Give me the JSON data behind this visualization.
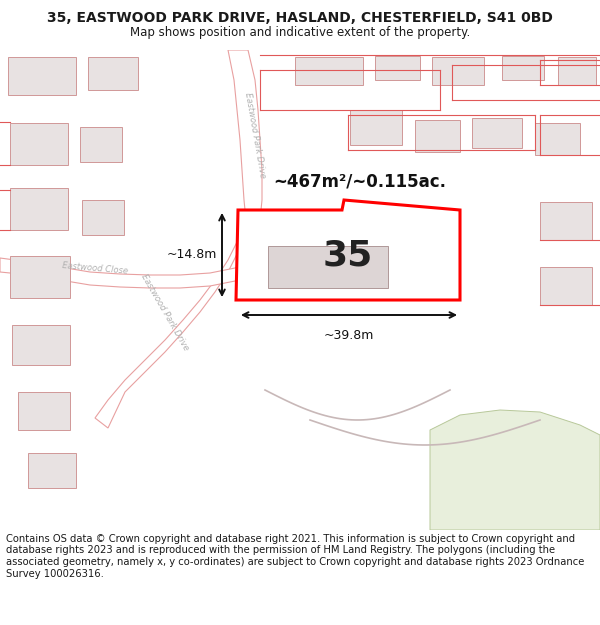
{
  "title": "35, EASTWOOD PARK DRIVE, HASLAND, CHESTERFIELD, S41 0BD",
  "subtitle": "Map shows position and indicative extent of the property.",
  "footer": "Contains OS data © Crown copyright and database right 2021. This information is subject to Crown copyright and database rights 2023 and is reproduced with the permission of HM Land Registry. The polygons (including the associated geometry, namely x, y co-ordinates) are subject to Crown copyright and database rights 2023 Ordnance Survey 100026316.",
  "bg_color": "#ffffff",
  "map_bg": "#f7f0f0",
  "road_color": "#e8a0a0",
  "road_fill": "#ffffff",
  "highlight_color": "#ff0000",
  "building_fill": "#e8e2e2",
  "building_stroke": "#d09898",
  "area_label": "~467m²/~0.115ac.",
  "number_label": "35",
  "dim_width": "~39.8m",
  "dim_height": "~14.8m",
  "road_label_epd1": "Eastwood Park Drive",
  "road_label_epd2": "Eastwood Park Drive",
  "road_label_ec": "Eastwood Close",
  "title_fontsize": 10,
  "subtitle_fontsize": 8.5,
  "footer_fontsize": 7.2
}
